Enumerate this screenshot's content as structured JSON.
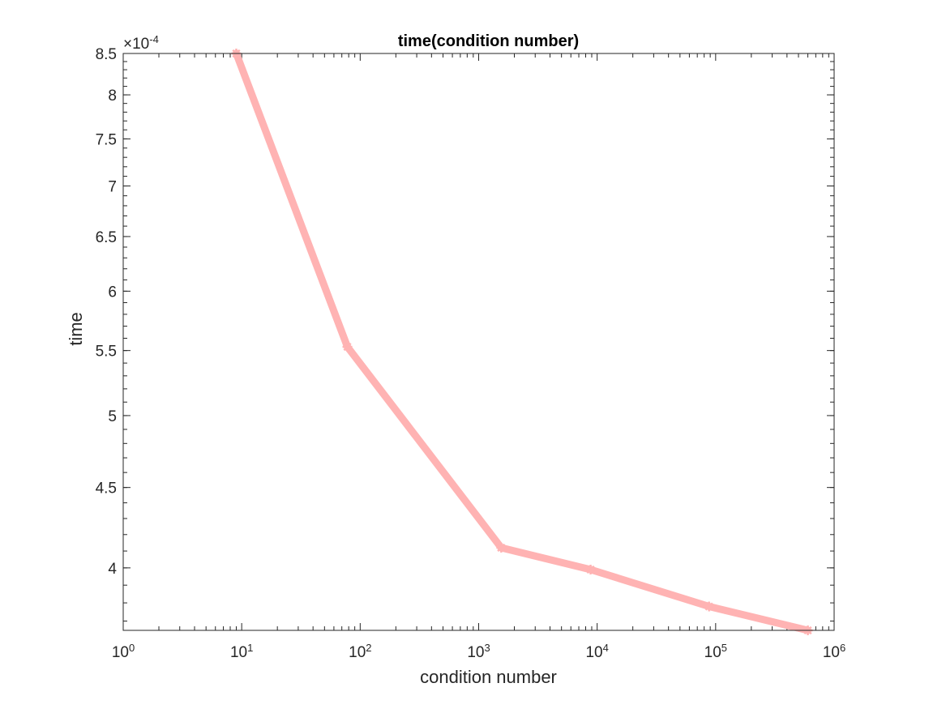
{
  "chart_data": {
    "type": "line",
    "title": "time(condition number)",
    "xlabel": "condition number",
    "ylabel": "time",
    "x_scale": "log",
    "y_scale": "log",
    "xlim": [
      1,
      1000000
    ],
    "ylim": [
      0.000365,
      0.00085
    ],
    "x_ticks": [
      {
        "value": 1,
        "base": "10",
        "exp": "0"
      },
      {
        "value": 10,
        "base": "10",
        "exp": "1"
      },
      {
        "value": 100,
        "base": "10",
        "exp": "2"
      },
      {
        "value": 1000,
        "base": "10",
        "exp": "3"
      },
      {
        "value": 10000,
        "base": "10",
        "exp": "4"
      },
      {
        "value": 100000,
        "base": "10",
        "exp": "5"
      },
      {
        "value": 1000000,
        "base": "10",
        "exp": "6"
      }
    ],
    "y_ticks": [
      {
        "value": 0.0004,
        "label": "4"
      },
      {
        "value": 0.00045,
        "label": "4.5"
      },
      {
        "value": 0.0005,
        "label": "5"
      },
      {
        "value": 0.00055,
        "label": "5.5"
      },
      {
        "value": 0.0006,
        "label": "6"
      },
      {
        "value": 0.00065,
        "label": "6.5"
      },
      {
        "value": 0.0007,
        "label": "7"
      },
      {
        "value": 0.00075,
        "label": "7.5"
      },
      {
        "value": 0.0008,
        "label": "8"
      },
      {
        "value": 0.00085,
        "label": "8.5"
      }
    ],
    "y_multiplier": {
      "base": "×10",
      "exp": "-4"
    },
    "series": [
      {
        "color": "#ffb3b3",
        "marker": "star",
        "x": [
          9,
          78,
          1550,
          8800,
          88000,
          600000
        ],
        "y": [
          0.00085,
          0.000553,
          0.000412,
          0.000399,
          0.000378,
          0.000365
        ]
      }
    ],
    "grid": false,
    "legend": "none"
  }
}
